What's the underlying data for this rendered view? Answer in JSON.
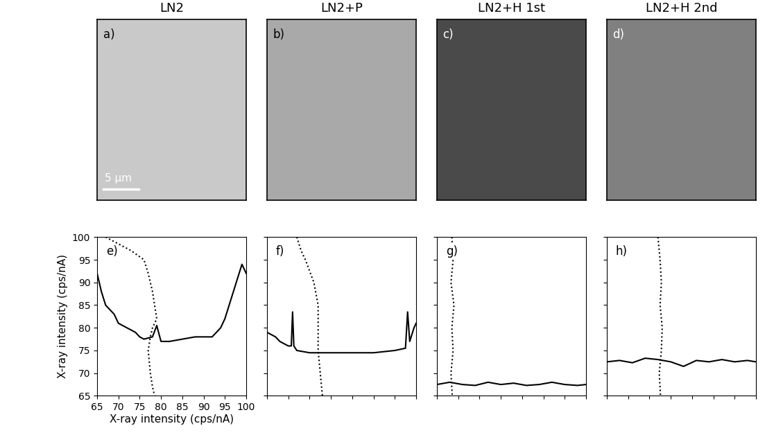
{
  "images": [
    {
      "title": "LN2",
      "label": "a)",
      "color": "#c9c9c9",
      "scale_bar": "5 µm"
    },
    {
      "title": "LN2+P",
      "label": "b)",
      "color": "#a9a9a9"
    },
    {
      "title": "LN2+H 1st",
      "label": "c)",
      "color": "#4a4a4a"
    },
    {
      "title": "LN2+H 2nd",
      "label": "d)",
      "color": "#808080"
    }
  ],
  "chart_data": [
    {
      "type": "line",
      "label": "e)",
      "xlabel": "X-ray intensity (cps/nA)",
      "ylabel": "X-ray intensity (cps/nA)",
      "xlim": [
        65,
        100
      ],
      "ylim": [
        65,
        100
      ],
      "xticks": [
        65,
        70,
        75,
        80,
        85,
        90,
        95,
        100
      ],
      "yticks": [
        65,
        70,
        75,
        80,
        85,
        90,
        95,
        100
      ],
      "series": [
        {
          "line_style": "solid",
          "color": "#000000",
          "x": [
            65,
            66,
            67,
            68,
            69,
            70,
            72,
            74,
            75,
            76,
            78,
            79,
            80,
            82,
            85,
            88,
            90,
            92,
            94,
            95,
            96,
            97,
            98,
            99,
            100
          ],
          "values": [
            92,
            88,
            85,
            84,
            83,
            81,
            80,
            79,
            78,
            77.5,
            78,
            80.5,
            77,
            77,
            77.5,
            78,
            78,
            78,
            80,
            82,
            85,
            88,
            91,
            94,
            92
          ]
        },
        {
          "line_style": "dotted",
          "color": "#000000",
          "x": [
            67,
            73,
            76,
            77,
            78,
            78.5,
            79,
            78,
            77.5,
            77,
            77.5,
            78,
            78.5
          ],
          "values": [
            100,
            97,
            95,
            92,
            88,
            85,
            82,
            80,
            78,
            75,
            70,
            67,
            65
          ]
        }
      ]
    },
    {
      "type": "line",
      "label": "f)",
      "tick_labels": false,
      "xlim": [
        65,
        100
      ],
      "ylim": [
        65,
        100
      ],
      "xticks": [
        65,
        70,
        75,
        80,
        85,
        90,
        95,
        100
      ],
      "yticks": [
        65,
        70,
        75,
        80,
        85,
        90,
        95,
        100
      ],
      "series": [
        {
          "line_style": "solid",
          "color": "#000000",
          "x": [
            65,
            67,
            68,
            70,
            70.7,
            71,
            71.3,
            72,
            75,
            80,
            85,
            90,
            95,
            97.5,
            98,
            98.5,
            99.5,
            100
          ],
          "values": [
            79,
            78,
            77,
            76,
            76,
            83.5,
            76,
            75,
            74.5,
            74.5,
            74.5,
            74.5,
            75,
            75.5,
            83.5,
            77,
            80,
            81
          ]
        },
        {
          "line_style": "dotted",
          "color": "#000000",
          "x": [
            72,
            73,
            74,
            76,
            77,
            77,
            77,
            77.5,
            78
          ],
          "values": [
            100,
            97,
            95,
            90,
            85,
            80,
            75,
            70,
            65
          ]
        }
      ]
    },
    {
      "type": "line",
      "label": "g)",
      "tick_labels": false,
      "xlim": [
        65,
        100
      ],
      "ylim": [
        65,
        100
      ],
      "xticks": [
        65,
        70,
        75,
        80,
        85,
        90,
        95,
        100
      ],
      "yticks": [
        65,
        70,
        75,
        80,
        85,
        90,
        95,
        100
      ],
      "series": [
        {
          "line_style": "solid",
          "color": "#000000",
          "x": [
            65,
            68,
            71,
            74,
            77,
            80,
            83,
            86,
            89,
            92,
            95,
            98,
            100
          ],
          "values": [
            67.5,
            68,
            67.5,
            67.3,
            68,
            67.5,
            67.8,
            67.3,
            67.5,
            68,
            67.5,
            67.3,
            67.5
          ]
        },
        {
          "line_style": "dotted",
          "color": "#000000",
          "x": [
            68.5,
            68.8,
            68.3,
            69,
            68.5,
            68.8,
            68.3,
            68.6
          ],
          "values": [
            100,
            95,
            90,
            85,
            80,
            75,
            70,
            65
          ]
        }
      ]
    },
    {
      "type": "line",
      "label": "h)",
      "tick_labels": false,
      "xlim": [
        65,
        100
      ],
      "ylim": [
        65,
        100
      ],
      "xticks": [
        65,
        70,
        75,
        80,
        85,
        90,
        95,
        100
      ],
      "yticks": [
        65,
        70,
        75,
        80,
        85,
        90,
        95,
        100
      ],
      "series": [
        {
          "line_style": "solid",
          "color": "#000000",
          "x": [
            65,
            68,
            71,
            74,
            77,
            80,
            83,
            86,
            89,
            92,
            95,
            98,
            100
          ],
          "values": [
            72.5,
            72.8,
            72.3,
            73.3,
            73,
            72.5,
            71.5,
            72.8,
            72.5,
            73,
            72.5,
            72.8,
            72.5
          ]
        },
        {
          "line_style": "dotted",
          "color": "#000000",
          "x": [
            77,
            77.5,
            77.8,
            77.5,
            78,
            77.8,
            77.3,
            77.6
          ],
          "values": [
            100,
            95,
            90,
            85,
            80,
            75,
            70,
            65
          ]
        }
      ]
    }
  ]
}
